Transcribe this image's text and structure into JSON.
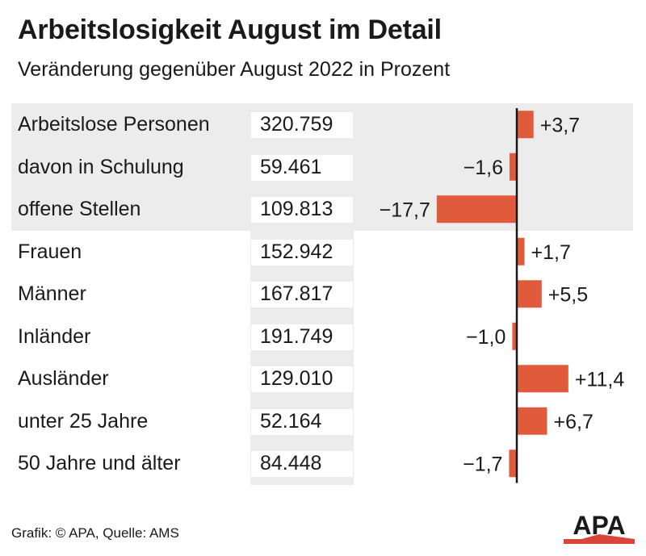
{
  "header": {
    "title": "Arbeitslosigkeit August im Detail",
    "subtitle": "Veränderung gegenüber August 2022 in Prozent"
  },
  "footer": {
    "source": "Grafik: © APA, Quelle: AMS",
    "logo_text": "APA"
  },
  "colors": {
    "bar": "#e05a3c",
    "highlight_band": "#ececec",
    "axis": "#1a1a1a",
    "logo_text": "#1a1a1a",
    "logo_triangle": "#d9453a"
  },
  "chart_data": {
    "type": "bar",
    "orientation": "horizontal",
    "title": "Arbeitslosigkeit August im Detail",
    "subtitle": "Veränderung gegenüber August 2022 in Prozent",
    "categories": [
      "Arbeitslose Personen",
      "davon in Schulung",
      "offene Stellen",
      "Frauen",
      "Männer",
      "Inländer",
      "Ausländer",
      "unter 25 Jahre",
      "50 Jahre und älter"
    ],
    "absolute_values": [
      "320.759",
      "59.461",
      "109.813",
      "152.942",
      "167.817",
      "191.749",
      "129.010",
      "52.164",
      "84.448"
    ],
    "values": [
      3.7,
      -1.6,
      -17.7,
      1.7,
      5.5,
      -1.0,
      11.4,
      6.7,
      -1.7
    ],
    "value_labels": [
      "+3,7",
      "−1,6",
      "−17,7",
      "+1,7",
      "+5,5",
      "−1,0",
      "+11,4",
      "+6,7",
      "−1,7"
    ],
    "highlighted_rows": 3,
    "xlim": [
      -17.7,
      11.4
    ],
    "grid": false,
    "legend": "none"
  }
}
